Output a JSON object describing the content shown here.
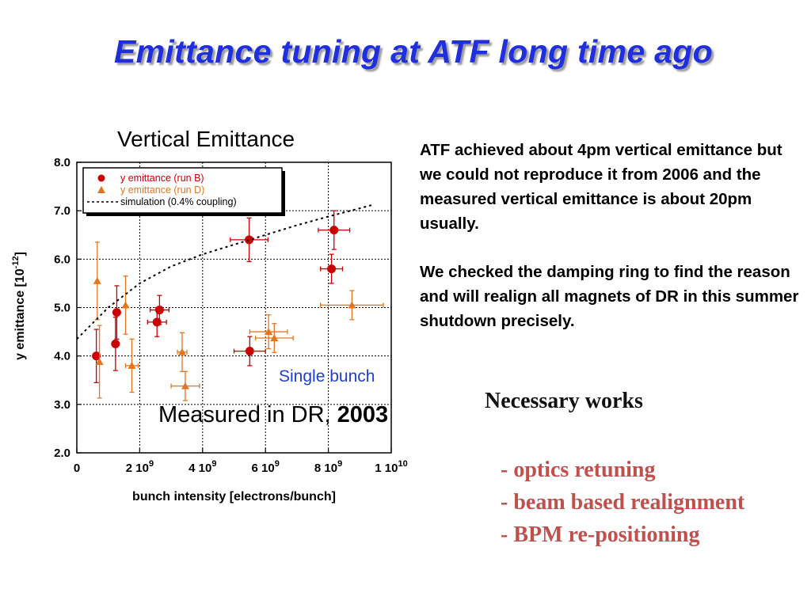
{
  "slide": {
    "title": "Emittance tuning at ATF long time ago",
    "paragraph1": "ATF achieved about 4pm vertical emittance but we could not reproduce it from 2006 and the measured vertical emittance is about 20pm usually.",
    "paragraph2": "We checked the damping ring to find the reason and will realign all magnets of DR in this summer shutdown precisely.",
    "works_title": "Necessary works",
    "works": [
      "- optics retuning",
      "- beam based realignment",
      "- BPM re-positioning"
    ],
    "annotation_single_bunch": "Single bunch",
    "annotation_measured_prefix": "Measured in DR, ",
    "annotation_measured_year": "2003",
    "colors": {
      "title": "#1f2fe0",
      "run_b": "#cc0000",
      "run_d": "#e6761e",
      "works": "#c0504d",
      "single_bunch": "#1f3fd0"
    }
  },
  "chart_data": {
    "type": "scatter",
    "title": "Vertical Emittance",
    "xlabel": "bunch intensity [electrons/bunch]",
    "ylabel_base": "y emittance [10",
    "ylabel_exp": "-12",
    "ylabel_end": "]",
    "xlim": [
      0,
      10000000000
    ],
    "ylim": [
      2.0,
      8.0
    ],
    "y_ticks": [
      "2.0",
      "3.0",
      "4.0",
      "5.0",
      "6.0",
      "7.0",
      "8.0"
    ],
    "x_ticks": [
      {
        "value": 0,
        "base": "0",
        "exp": ""
      },
      {
        "value": 2000000000,
        "base": "2 10",
        "exp": "9"
      },
      {
        "value": 4000000000,
        "base": "4 10",
        "exp": "9"
      },
      {
        "value": 6000000000,
        "base": "6 10",
        "exp": "9"
      },
      {
        "value": 8000000000,
        "base": "8 10",
        "exp": "9"
      },
      {
        "value": 10000000000,
        "base": "1 10",
        "exp": "10"
      }
    ],
    "grid": true,
    "legend_position": "top-left",
    "series": [
      {
        "name": "y emittance (run B)",
        "marker": "circle",
        "color": "#cc0000",
        "points": [
          {
            "x": 620000000,
            "y": 4.0,
            "xerr": 0,
            "yerr": 0.55
          },
          {
            "x": 1230000000,
            "y": 4.25,
            "xerr": 0,
            "yerr": 0.55
          },
          {
            "x": 1270000000,
            "y": 4.9,
            "xerr": 0,
            "yerr": 0.55
          },
          {
            "x": 2550000000,
            "y": 4.7,
            "xerr": 300000000,
            "yerr": 0.3
          },
          {
            "x": 2630000000,
            "y": 4.95,
            "xerr": 300000000,
            "yerr": 0.3
          },
          {
            "x": 5500000000,
            "y": 4.1,
            "xerr": 500000000,
            "yerr": 0.3
          },
          {
            "x": 5480000000,
            "y": 6.4,
            "xerr": 600000000,
            "yerr": 0.45
          },
          {
            "x": 8100000000,
            "y": 5.8,
            "xerr": 350000000,
            "yerr": 0.3
          },
          {
            "x": 8180000000,
            "y": 6.6,
            "xerr": 500000000,
            "yerr": 0.4
          }
        ]
      },
      {
        "name": "y emittance (run D)",
        "marker": "triangle",
        "color": "#e6761e",
        "points": [
          {
            "x": 650000000,
            "y": 5.55,
            "xerr": 0,
            "yerr": 0.8
          },
          {
            "x": 720000000,
            "y": 3.88,
            "xerr": 0,
            "yerr": 0.75
          },
          {
            "x": 1550000000,
            "y": 5.05,
            "xerr": 0,
            "yerr": 0.6
          },
          {
            "x": 1750000000,
            "y": 3.8,
            "xerr": 200000000,
            "yerr": 0.55
          },
          {
            "x": 3350000000,
            "y": 4.08,
            "xerr": 150000000,
            "yerr": 0.4
          },
          {
            "x": 3450000000,
            "y": 3.38,
            "xerr": 450000000,
            "yerr": 0.3
          },
          {
            "x": 6100000000,
            "y": 4.5,
            "xerr": 600000000,
            "yerr": 0.35
          },
          {
            "x": 6280000000,
            "y": 4.37,
            "xerr": 600000000,
            "yerr": 0.3
          },
          {
            "x": 8750000000,
            "y": 5.05,
            "xerr": 1000000000,
            "yerr": 0.3
          }
        ]
      },
      {
        "name": "simulation (0.4% coupling)",
        "marker": "dotted-line",
        "color": "#000000",
        "points": [
          {
            "x": 0,
            "y": 4.35
          },
          {
            "x": 1000000000,
            "y": 5.0
          },
          {
            "x": 2000000000,
            "y": 5.5
          },
          {
            "x": 3000000000,
            "y": 5.85
          },
          {
            "x": 4000000000,
            "y": 6.1
          },
          {
            "x": 5000000000,
            "y": 6.3
          },
          {
            "x": 6000000000,
            "y": 6.5
          },
          {
            "x": 7000000000,
            "y": 6.7
          },
          {
            "x": 8000000000,
            "y": 6.88
          },
          {
            "x": 9000000000,
            "y": 7.05
          },
          {
            "x": 9400000000,
            "y": 7.12
          }
        ]
      }
    ]
  }
}
